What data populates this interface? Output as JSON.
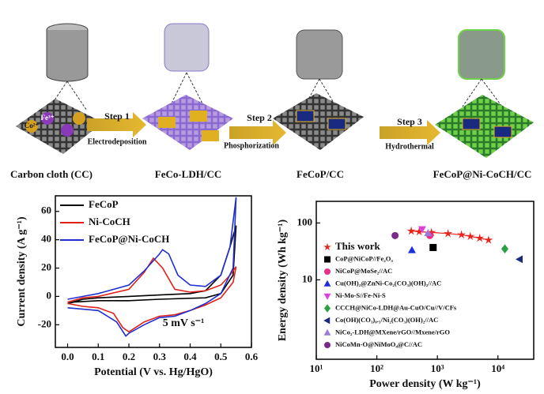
{
  "schematic": {
    "stages": [
      "Carbon cloth (CC)",
      "FeCo-LDH/CC",
      "FeCoP/CC",
      "FeCoP@Ni-CoCH/CC"
    ],
    "steps": [
      {
        "label": "Step 1",
        "process": "Electrodeposition"
      },
      {
        "label": "Step 2",
        "process": "Phosphorization"
      },
      {
        "label": "Step 3",
        "process": "Hydrothermal"
      }
    ],
    "ions": [
      "Fe³⁺",
      "Co²⁺"
    ]
  },
  "chart_data": [
    {
      "type": "line",
      "xlabel": "Potential (V vs. Hg/HgO)",
      "ylabel": "Current density (A g⁻¹)",
      "annotation": "5 mV s⁻¹",
      "xlim": [
        -0.04,
        0.6
      ],
      "ylim": [
        -36,
        71
      ],
      "xticks": [
        {
          "value": 0,
          "label": "0.0"
        },
        0.1,
        0.2,
        0.3,
        0.4,
        0.5,
        0.6
      ],
      "yticks": [
        -20,
        0,
        20,
        40,
        60
      ],
      "legend": "upper left",
      "series": [
        {
          "name": "FeCoP",
          "color": "#000000",
          "x": [
            0,
            0.05,
            0.1,
            0.2,
            0.3,
            0.4,
            0.45,
            0.5,
            0.53,
            0.55,
            0.54,
            0.5,
            0.45,
            0.3,
            0.2,
            0.1,
            0.02,
            0
          ],
          "values": [
            -5,
            -2,
            -1,
            0,
            1,
            2,
            4,
            15,
            35,
            50,
            15,
            2,
            -1,
            -2,
            -3,
            -3,
            -4,
            -5
          ]
        },
        {
          "name": "Ni-CoCH",
          "color": "#e0201b",
          "x": [
            0,
            0.05,
            0.1,
            0.2,
            0.25,
            0.28,
            0.31,
            0.35,
            0.4,
            0.45,
            0.5,
            0.53,
            0.55,
            0.54,
            0.5,
            0.45,
            0.4,
            0.35,
            0.3,
            0.25,
            0.2,
            0.18,
            0.15,
            0.1,
            0.05,
            0
          ],
          "values": [
            -4,
            -1,
            0,
            5,
            17,
            27,
            20,
            5,
            3,
            4,
            8,
            15,
            21,
            10,
            -1,
            -6,
            -10,
            -13,
            -14,
            -18,
            -25,
            -22,
            -12,
            -8,
            -7,
            -5
          ]
        },
        {
          "name": "FeCoP@Ni-CoCH",
          "color": "#1f2fd0",
          "x": [
            0,
            0.05,
            0.1,
            0.2,
            0.25,
            0.3,
            0.31,
            0.33,
            0.36,
            0.4,
            0.45,
            0.5,
            0.53,
            0.55,
            0.54,
            0.5,
            0.45,
            0.4,
            0.35,
            0.3,
            0.25,
            0.2,
            0.19,
            0.16,
            0.1,
            0.05,
            0
          ],
          "values": [
            -2,
            0,
            2,
            8,
            18,
            30,
            33,
            30,
            15,
            8,
            7,
            15,
            35,
            70,
            20,
            2,
            -5,
            -10,
            -14,
            -15,
            -20,
            -26,
            -28,
            -18,
            -10,
            -9,
            -8
          ]
        }
      ]
    },
    {
      "type": "scatter",
      "xlabel": "Power density (W kg⁻¹)",
      "ylabel": "Energy density (Wh kg⁻¹)",
      "xscale": "log",
      "yscale": "log",
      "xlim": [
        10,
        39000
      ],
      "ylim": [
        0.4,
        240
      ],
      "xticks": [
        {
          "value": 10,
          "label": "10¹"
        },
        {
          "value": 100,
          "label": "10²"
        },
        {
          "value": 1000,
          "label": "10³"
        },
        {
          "value": 10000,
          "label": "10⁴"
        }
      ],
      "yticks": [
        10,
        100
      ],
      "legend": "left",
      "series": [
        {
          "name": "This work",
          "color": "#e8231c",
          "marker": "star",
          "line": true,
          "x": [
            370,
            500,
            800,
            1500,
            2500,
            3500,
            5000,
            7000
          ],
          "values": [
            72,
            70,
            68,
            65,
            62,
            58,
            54,
            50
          ]
        },
        {
          "name": "CoP@NiCoP//Fe₂O₃",
          "color": "#000000",
          "marker": "square",
          "x": [
            850
          ],
          "values": [
            37
          ]
        },
        {
          "name": "NiCoP@MoSe₂//AC",
          "color": "#e8308a",
          "marker": "circle",
          "x": [
            750
          ],
          "values": [
            60
          ]
        },
        {
          "name": "Cu(OH)₂@ZnNi-Co₂(CO₃)(OH)₂//AC",
          "color": "#1a2ee0",
          "marker": "triangle-up",
          "x": [
            380
          ],
          "values": [
            33
          ]
        },
        {
          "name": "Ni-Mo-S//Fe-Ni-S",
          "color": "#e040e0",
          "marker": "triangle-down",
          "x": [
            560
          ],
          "values": [
            78
          ]
        },
        {
          "name": "CCCH@NiCo-LDH@Au-CuO/Cu//V/CFs",
          "color": "#2aa040",
          "marker": "diamond",
          "x": [
            13000
          ],
          "values": [
            35
          ]
        },
        {
          "name": "Co(OH)(CO₃)₀.₅/Ni₂(CO₃)(OH)₂//AC",
          "color": "#1a2a80",
          "marker": "triangle-left",
          "x": [
            23000
          ],
          "values": [
            23
          ]
        },
        {
          "name": "NiCo₂-LDH@MXene/rGO//Mxene/rGO",
          "color": "#9a7ad8",
          "marker": "triangle-up",
          "x": [
            700
          ],
          "values": [
            66
          ]
        },
        {
          "name": "NiCoMn-O@NiMoO₄@C//AC",
          "color": "#7a2a8a",
          "marker": "circle",
          "x": [
            200
          ],
          "values": [
            60
          ]
        }
      ]
    }
  ]
}
